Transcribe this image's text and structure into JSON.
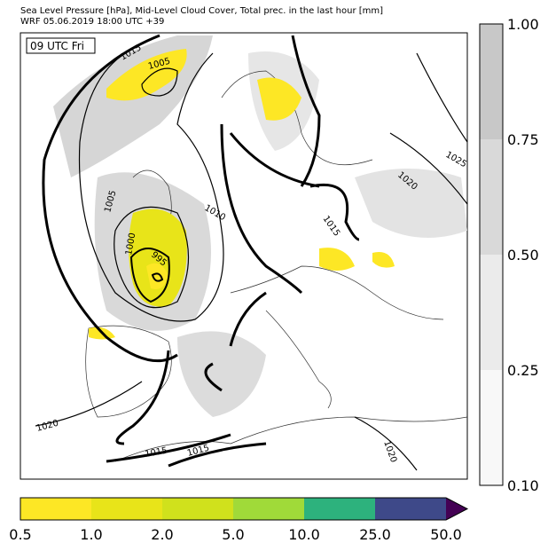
{
  "header": {
    "line1": "Sea Level Pressure [hPa], Mid-Level Cloud Cover, Total prec. in the last hour [mm]",
    "line2": "WRF 05.06.2019 18:00 UTC +39"
  },
  "map": {
    "time_label": "09 UTC Fri",
    "contour_labels": [
      "1015",
      "1005",
      "1005",
      "1010",
      "1000",
      "995",
      "1020",
      "1025",
      "1015",
      "1020",
      "1015",
      "1015",
      "1020"
    ]
  },
  "cloud_colorbar": {
    "ticks": [
      "1.00",
      "0.75",
      "0.50",
      "0.25",
      "0.10"
    ]
  },
  "precip_colorbar": {
    "ticks": [
      "0.5",
      "1.0",
      "2.0",
      "5.0",
      "10.0",
      "25.0",
      "50.0"
    ]
  }
}
